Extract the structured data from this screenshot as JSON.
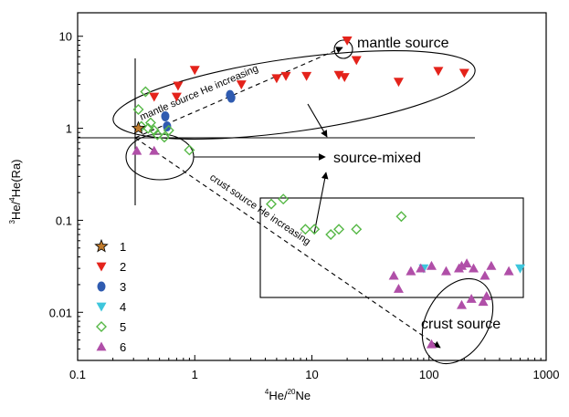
{
  "chart_data": {
    "type": "scatter",
    "xlabel": {
      "sup1": "4",
      "main1": "He/",
      "sup2": "20",
      "main2": "Ne"
    },
    "ylabel": {
      "sup1": "3",
      "main1": "He/",
      "sup2": "4",
      "main2": "He(Ra)"
    },
    "x_scale": "log",
    "y_scale": "log",
    "xlim": [
      0.1,
      1000
    ],
    "ylim": [
      0.003,
      18
    ],
    "x_ticks": [
      0.1,
      1,
      10,
      100,
      1000
    ],
    "x_tick_labels": [
      "0.1",
      "1",
      "10",
      "100",
      "1000"
    ],
    "y_ticks": [
      0.01,
      0.1,
      1,
      10
    ],
    "y_tick_labels": [
      "0.01",
      "0.1",
      "1",
      "10"
    ],
    "grid": false,
    "legend_position": "lower-left",
    "colors": {
      "1": "#c07a2b",
      "2": "#e4231b",
      "3": "#2f5bb0",
      "4": "#3ec6dc",
      "5": "#56b846",
      "6": "#b04fa8"
    },
    "series": [
      {
        "name": "1",
        "marker": "star",
        "points": [
          [
            0.33,
            1.0
          ]
        ]
      },
      {
        "name": "2",
        "marker": "triangle-down",
        "points": [
          [
            0.45,
            2.2
          ],
          [
            0.7,
            2.2
          ],
          [
            0.72,
            2.9
          ],
          [
            1.0,
            4.3
          ],
          [
            2.5,
            3.0
          ],
          [
            5.0,
            3.5
          ],
          [
            6.0,
            3.7
          ],
          [
            9.0,
            3.7
          ],
          [
            17.0,
            3.8
          ],
          [
            19.0,
            3.6
          ],
          [
            20.0,
            9.0
          ],
          [
            24.0,
            5.5
          ],
          [
            55.0,
            3.2
          ],
          [
            120.0,
            4.2
          ],
          [
            200.0,
            4.0
          ]
        ]
      },
      {
        "name": "3",
        "marker": "circle",
        "points": [
          [
            0.56,
            1.35
          ],
          [
            0.58,
            1.05
          ],
          [
            2.0,
            2.3
          ],
          [
            2.05,
            2.15
          ]
        ]
      },
      {
        "name": "4",
        "marker": "triangle-down",
        "points": [
          [
            90.0,
            0.03
          ],
          [
            600.0,
            0.03
          ]
        ]
      },
      {
        "name": "5",
        "marker": "diamond",
        "points": [
          [
            0.33,
            1.6
          ],
          [
            0.38,
            2.5
          ],
          [
            0.35,
            1.05
          ],
          [
            0.4,
            1.0
          ],
          [
            0.42,
            1.15
          ],
          [
            0.45,
            0.95
          ],
          [
            0.48,
            0.85
          ],
          [
            0.55,
            0.8
          ],
          [
            0.6,
            0.95
          ],
          [
            0.9,
            0.58
          ],
          [
            4.5,
            0.15
          ],
          [
            5.7,
            0.17
          ],
          [
            8.8,
            0.08
          ],
          [
            10.5,
            0.08
          ],
          [
            14.5,
            0.07
          ],
          [
            17.0,
            0.08
          ],
          [
            24.0,
            0.08
          ],
          [
            58.0,
            0.11
          ]
        ]
      },
      {
        "name": "6",
        "marker": "triangle-up",
        "points": [
          [
            0.32,
            0.57
          ],
          [
            0.45,
            0.57
          ],
          [
            50.0,
            0.025
          ],
          [
            55.0,
            0.018
          ],
          [
            70.0,
            0.028
          ],
          [
            85.0,
            0.03
          ],
          [
            105.0,
            0.032
          ],
          [
            140.0,
            0.028
          ],
          [
            180.0,
            0.03
          ],
          [
            190.0,
            0.032
          ],
          [
            210.0,
            0.034
          ],
          [
            240.0,
            0.03
          ],
          [
            300.0,
            0.025
          ],
          [
            340.0,
            0.032
          ],
          [
            480.0,
            0.028
          ],
          [
            230.0,
            0.014
          ],
          [
            290.0,
            0.013
          ],
          [
            310.0,
            0.015
          ],
          [
            190.0,
            0.012
          ],
          [
            105.0,
            0.0045
          ]
        ]
      }
    ],
    "annotations": {
      "mantle_source": "mantle source",
      "source_mixed": "source-mixed",
      "crust_source": "crust source",
      "mantle_trend": "mantle source He increasing",
      "crust_trend": "crust source He increasing"
    },
    "legend_labels": [
      "1",
      "2",
      "3",
      "4",
      "5",
      "6"
    ]
  }
}
